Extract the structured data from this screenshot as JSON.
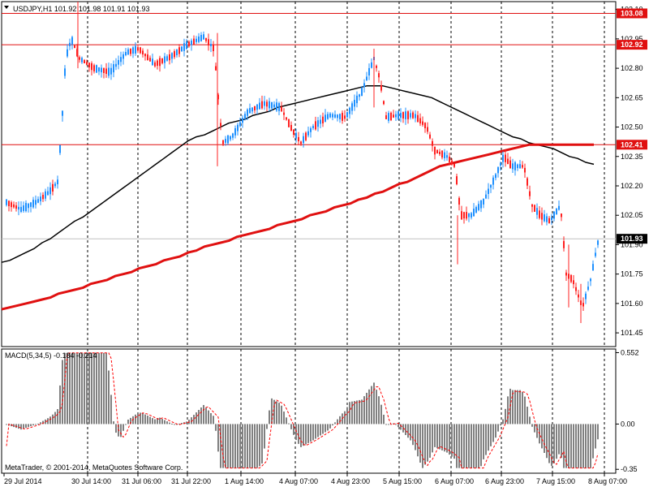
{
  "window": {
    "symbol_header": "USDJPY,H1  101.92 101.98 101.91 101.93",
    "copyright": "MetaTrader, © 2001-2014, MetaQuotes Software Corp."
  },
  "colors": {
    "background": "#ffffff",
    "frame": "#000000",
    "grid": "#000000",
    "bull": "#1e90ff",
    "bear": "#ff2020",
    "ma_fast": "#000000",
    "ma_slow": "#e01010",
    "level_line": "#e01010",
    "histogram": "#808080",
    "signal": "#ff0000",
    "current_price": "#c0c0c0"
  },
  "chart_data": [
    {
      "type": "candlestick",
      "symbol": "USDJPY",
      "timeframe": "H1",
      "ohlc_last": {
        "open": 101.92,
        "high": 101.98,
        "low": 101.91,
        "close": 101.93
      },
      "ylim": [
        101.38,
        103.14
      ],
      "y_ticks": [
        "103.10",
        "102.95",
        "102.80",
        "102.65",
        "102.50",
        "102.35",
        "102.20",
        "102.05",
        "101.90",
        "101.75",
        "101.60",
        "101.45"
      ],
      "x_tick_labels": [
        "29 Jul 2014",
        "30 Jul 14:00",
        "31 Jul 06:00",
        "31 Jul 22:00",
        "1 Aug 14:00",
        "4 Aug 07:00",
        "4 Aug 23:00",
        "5 Aug 15:00",
        "6 Aug 07:00",
        "6 Aug 23:00",
        "7 Aug 15:00",
        "8 Aug 07:00"
      ],
      "horizontal_levels": [
        "103.08",
        "102.92",
        "102.41"
      ],
      "current_price": "101.93",
      "grid": true,
      "series": [
        {
          "kind": "moving_average_fast",
          "x": [
            0,
            10,
            20,
            30,
            40,
            50,
            60,
            70,
            80,
            90,
            100,
            110,
            120,
            130,
            140,
            150,
            160,
            170,
            180,
            190,
            200,
            210,
            220,
            230,
            240,
            250,
            260,
            270,
            280,
            290,
            300,
            310,
            320,
            330,
            340,
            350,
            360,
            370,
            380,
            390,
            400,
            410,
            420,
            430,
            440,
            450,
            460,
            470,
            480,
            490,
            500,
            510,
            520,
            530,
            540,
            550,
            560,
            570,
            580,
            590,
            600,
            610,
            620,
            630,
            640,
            650,
            660,
            670,
            680,
            690,
            700,
            710,
            720,
            730
          ],
          "y": [
            101.81,
            101.82,
            101.84,
            101.86,
            101.88,
            101.91,
            101.93,
            101.96,
            101.99,
            102.02,
            102.04,
            102.07,
            102.1,
            102.13,
            102.16,
            102.19,
            102.22,
            102.25,
            102.28,
            102.31,
            102.34,
            102.37,
            102.4,
            102.43,
            102.45,
            102.46,
            102.48,
            102.5,
            102.52,
            102.53,
            102.54,
            102.56,
            102.57,
            102.58,
            102.6,
            102.61,
            102.62,
            102.63,
            102.64,
            102.65,
            102.66,
            102.67,
            102.68,
            102.69,
            102.7,
            102.71,
            102.71,
            102.71,
            102.7,
            102.69,
            102.68,
            102.67,
            102.66,
            102.65,
            102.63,
            102.61,
            102.59,
            102.57,
            102.55,
            102.53,
            102.51,
            102.49,
            102.47,
            102.45,
            102.44,
            102.42,
            102.41,
            102.4,
            102.39,
            102.37,
            102.35,
            102.34,
            102.32,
            102.31
          ]
        },
        {
          "kind": "moving_average_slow",
          "x": [
            0,
            10,
            20,
            30,
            40,
            50,
            60,
            70,
            80,
            90,
            100,
            110,
            120,
            130,
            140,
            150,
            160,
            170,
            180,
            190,
            200,
            210,
            220,
            230,
            240,
            250,
            260,
            270,
            280,
            290,
            300,
            310,
            320,
            330,
            340,
            350,
            360,
            370,
            380,
            390,
            400,
            410,
            420,
            430,
            440,
            450,
            460,
            470,
            480,
            490,
            500,
            510,
            520,
            530,
            540,
            550,
            560,
            570,
            580,
            590,
            600,
            610,
            620,
            630,
            640,
            650,
            660,
            670,
            680,
            690,
            700,
            710,
            720,
            730
          ],
          "y": [
            101.57,
            101.58,
            101.59,
            101.6,
            101.61,
            101.62,
            101.63,
            101.65,
            101.66,
            101.67,
            101.68,
            101.7,
            101.71,
            101.72,
            101.74,
            101.75,
            101.76,
            101.78,
            101.79,
            101.8,
            101.82,
            101.83,
            101.84,
            101.86,
            101.87,
            101.89,
            101.9,
            101.91,
            101.92,
            101.94,
            101.95,
            101.96,
            101.97,
            101.98,
            102.0,
            102.01,
            102.02,
            102.03,
            102.05,
            102.06,
            102.07,
            102.09,
            102.1,
            102.11,
            102.13,
            102.14,
            102.16,
            102.17,
            102.19,
            102.21,
            102.22,
            102.24,
            102.26,
            102.28,
            102.3,
            102.31,
            102.32,
            102.33,
            102.34,
            102.35,
            102.36,
            102.37,
            102.38,
            102.39,
            102.4,
            102.41,
            102.41,
            102.41,
            102.41,
            102.41,
            102.41,
            102.41,
            102.41,
            102.41
          ]
        }
      ]
    },
    {
      "type": "bar",
      "indicator": "MACD",
      "label": "MACD(5,34,5) -0.184 -0.214",
      "ylim": [
        -0.38,
        0.58
      ],
      "y_ticks": [
        "0.552",
        "0.00",
        "-0.35"
      ],
      "grid": true
    }
  ]
}
